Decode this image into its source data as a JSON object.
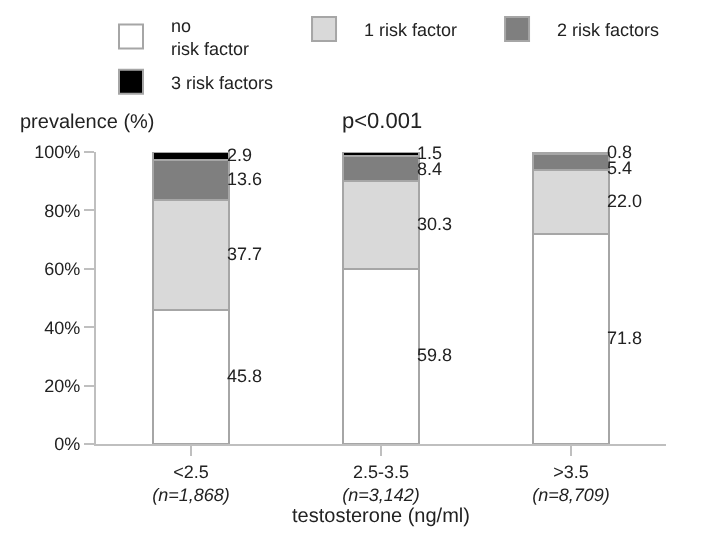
{
  "chart_data": {
    "type": "bar",
    "stacked": true,
    "xlabel": "testosterone (ng/ml)",
    "ylabel": "prevalence (%)",
    "annotations": [
      "p<0.001"
    ],
    "categories": [
      "<2.5\n(n=1,868)",
      "2.5-3.5\n(n=3,142)",
      ">3.5\n(n=8,709)"
    ],
    "series": [
      {
        "name": "no\nrisk factor",
        "color": "#ffffff",
        "values": [
          45.8,
          59.8,
          71.8
        ]
      },
      {
        "name": "1 risk factor",
        "color": "#d9d9d9",
        "values": [
          37.7,
          30.3,
          22.0
        ],
        "value_labels": [
          "37.7",
          "30.3",
          "22.0"
        ]
      },
      {
        "name": "2 risk factors",
        "color": "#7f7f7f",
        "values": [
          13.6,
          8.4,
          5.4
        ]
      },
      {
        "name": "3 risk factors",
        "color": "#000000",
        "values": [
          2.9,
          1.5,
          0.8
        ]
      }
    ],
    "ylim": [
      0,
      100
    ],
    "yticks": [
      {
        "value": 0,
        "label": "0%"
      },
      {
        "value": 20,
        "label": "20%"
      },
      {
        "value": 40,
        "label": "40%"
      },
      {
        "value": 60,
        "label": "60%"
      },
      {
        "value": 80,
        "label": "80%"
      },
      {
        "value": 100,
        "label": "100%"
      }
    ],
    "data_labels": true,
    "grid": false,
    "legend": "top"
  }
}
